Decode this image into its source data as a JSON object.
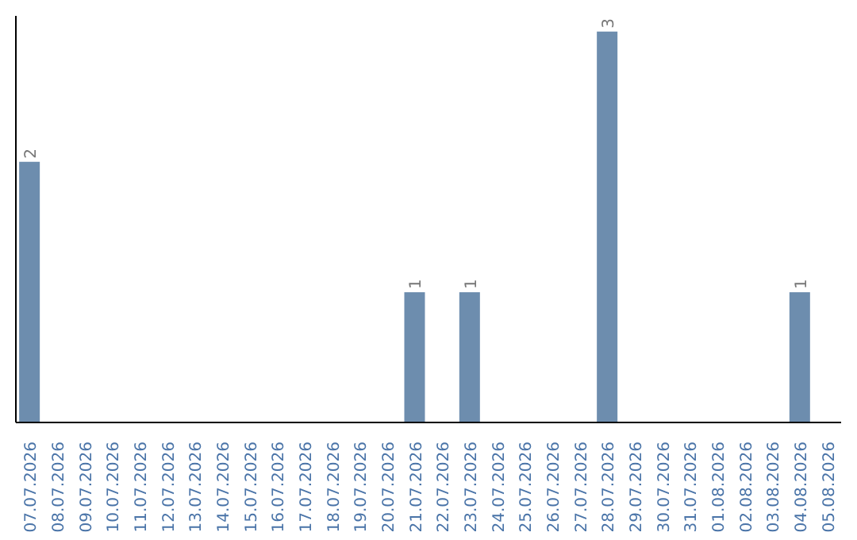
{
  "chart_data": {
    "type": "bar",
    "categories": [
      "07.07.2026",
      "08.07.2026",
      "09.07.2026",
      "10.07.2026",
      "11.07.2026",
      "12.07.2026",
      "13.07.2026",
      "14.07.2026",
      "15.07.2026",
      "16.07.2026",
      "17.07.2026",
      "18.07.2026",
      "19.07.2026",
      "20.07.2026",
      "21.07.2026",
      "22.07.2026",
      "23.07.2026",
      "24.07.2026",
      "25.07.2026",
      "26.07.2026",
      "27.07.2026",
      "28.07.2026",
      "29.07.2026",
      "30.07.2026",
      "31.07.2026",
      "01.08.2026",
      "02.08.2026",
      "03.08.2026",
      "04.08.2026",
      "05.08.2026"
    ],
    "values": [
      2,
      0,
      0,
      0,
      0,
      0,
      0,
      0,
      0,
      0,
      0,
      0,
      0,
      0,
      1,
      0,
      1,
      0,
      0,
      0,
      0,
      3,
      0,
      0,
      0,
      0,
      0,
      0,
      1,
      0
    ],
    "value_labels": [
      "2",
      null,
      null,
      null,
      null,
      null,
      null,
      null,
      null,
      null,
      null,
      null,
      null,
      null,
      "1",
      null,
      "1",
      null,
      null,
      null,
      null,
      "3",
      null,
      null,
      null,
      null,
      null,
      null,
      "1",
      null
    ],
    "color": "#6d8dae",
    "grid": false,
    "legend": false
  }
}
